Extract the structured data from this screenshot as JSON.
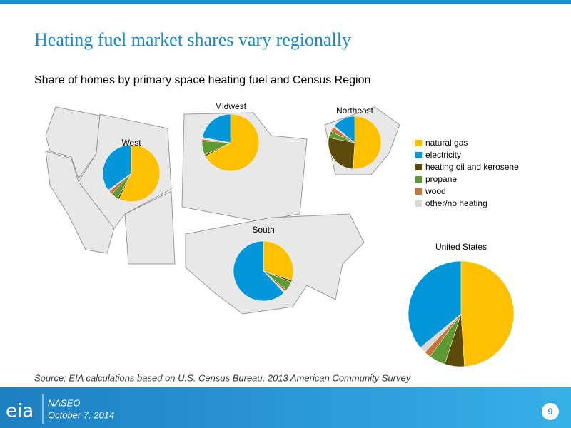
{
  "title": "Heating fuel market shares vary regionally",
  "subtitle": "Share of homes by primary space heating fuel and Census Region",
  "source": "Source: EIA calculations based on U.S. Census Bureau, 2013 American Community Survey",
  "footer": {
    "logo": "eia",
    "organization": "NASEO",
    "date": "October 7, 2014",
    "page": "9"
  },
  "chart_data": [
    {
      "type": "pie",
      "title": "West",
      "categories": [
        "natural gas",
        "electricity",
        "heating oil and kerosene",
        "propane",
        "wood",
        "other/no heating"
      ],
      "values": [
        57,
        35,
        1,
        4,
        2,
        1
      ],
      "colors": [
        "#ffc000",
        "#0096d7",
        "#5c4a0a",
        "#5d9a31",
        "#c8733a",
        "#d9d9d9"
      ]
    },
    {
      "type": "pie",
      "title": "Midwest",
      "categories": [
        "natural gas",
        "electricity",
        "heating oil and kerosene",
        "propane",
        "wood",
        "other/no heating"
      ],
      "values": [
        67,
        22,
        1,
        8,
        1,
        1
      ],
      "colors": [
        "#ffc000",
        "#0096d7",
        "#5c4a0a",
        "#5d9a31",
        "#c8733a",
        "#d9d9d9"
      ]
    },
    {
      "type": "pie",
      "title": "Northeast",
      "categories": [
        "natural gas",
        "electricity",
        "heating oil and kerosene",
        "propane",
        "wood",
        "other/no heating"
      ],
      "values": [
        51,
        14,
        27,
        4,
        3,
        1
      ],
      "colors": [
        "#ffc000",
        "#0096d7",
        "#5c4a0a",
        "#5d9a31",
        "#c8733a",
        "#d9d9d9"
      ]
    },
    {
      "type": "pie",
      "title": "South",
      "categories": [
        "natural gas",
        "electricity",
        "heating oil and kerosene",
        "propane",
        "wood",
        "other/no heating"
      ],
      "values": [
        30,
        62,
        1,
        5,
        1,
        1
      ],
      "colors": [
        "#ffc000",
        "#0096d7",
        "#5c4a0a",
        "#5d9a31",
        "#c8733a",
        "#d9d9d9"
      ]
    },
    {
      "type": "pie",
      "title": "United States",
      "categories": [
        "natural gas",
        "electricity",
        "heating oil and kerosene",
        "propane",
        "wood",
        "other/no heating"
      ],
      "values": [
        49,
        36,
        6,
        5,
        2,
        2
      ],
      "colors": [
        "#ffc000",
        "#0096d7",
        "#5c4a0a",
        "#5d9a31",
        "#c8733a",
        "#d9d9d9"
      ]
    }
  ]
}
